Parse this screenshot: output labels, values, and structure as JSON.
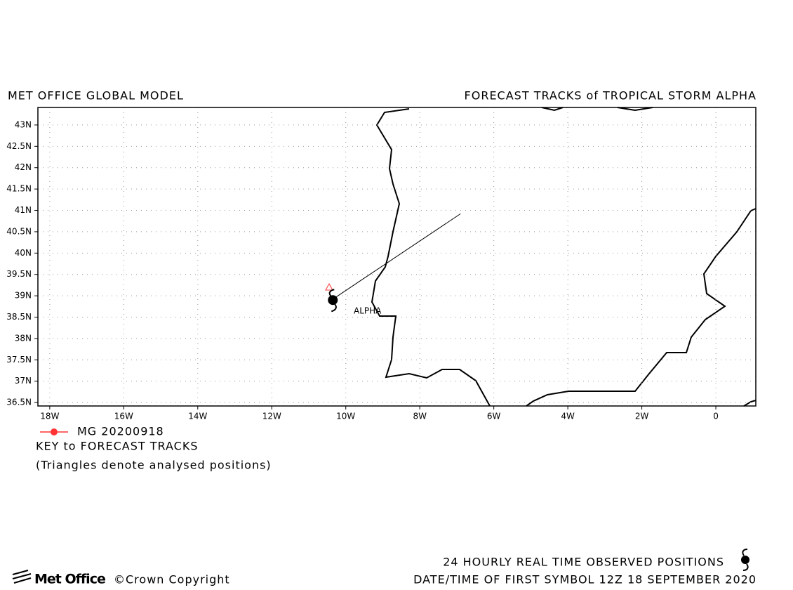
{
  "chart_data": {
    "type": "track-map",
    "title": "MET OFFICE GLOBAL MODEL",
    "subtitle": "FORECAST TRACKS of TROPICAL STORM ALPHA",
    "xlim": [
      -18.32,
      1.08
    ],
    "ylim": [
      36.42,
      43.41
    ],
    "xticks": [
      {
        "value": -18,
        "label": "18W"
      },
      {
        "value": -16,
        "label": "16W"
      },
      {
        "value": -14,
        "label": "14W"
      },
      {
        "value": -12,
        "label": "12W"
      },
      {
        "value": -10,
        "label": "10W"
      },
      {
        "value": -8,
        "label": "8W"
      },
      {
        "value": -6,
        "label": "6W"
      },
      {
        "value": -4,
        "label": "4W"
      },
      {
        "value": -2,
        "label": "2W"
      },
      0
    ],
    "yticks": [
      {
        "value": 36.5,
        "label": "36.5N"
      },
      {
        "value": 37,
        "label": "37N"
      },
      {
        "value": 37.5,
        "label": "37.5N"
      },
      {
        "value": 38,
        "label": "38N"
      },
      {
        "value": 38.5,
        "label": "38.5N"
      },
      {
        "value": 39,
        "label": "39N"
      },
      {
        "value": 39.5,
        "label": "39.5N"
      },
      {
        "value": 40,
        "label": "40N"
      },
      {
        "value": 40.5,
        "label": "40.5N"
      },
      {
        "value": 41,
        "label": "41N"
      },
      {
        "value": 41.5,
        "label": "41.5N"
      },
      {
        "value": 42,
        "label": "42N"
      },
      {
        "value": 42.5,
        "label": "42.5N"
      },
      {
        "value": 43,
        "label": "43N"
      }
    ],
    "grid": true,
    "series": [
      {
        "name": "MG 20200918",
        "color": "#ff3333",
        "x": [
          -10.3,
          -6.9
        ],
        "y": [
          38.95,
          40.92
        ]
      }
    ],
    "analysed": {
      "x": -10.45,
      "y": 39.2
    },
    "storm": {
      "label": "ALPHA",
      "x": -10.35,
      "y": 38.9
    },
    "key_title": "KEY to FORECAST TRACKS",
    "key_note": "(Triangles denote analysed positions)",
    "footer_line1": "24 HOURLY REAL TIME OBSERVED POSITIONS",
    "footer_line2": "DATE/TIME OF FIRST SYMBOL 12Z 18 SEPTEMBER 2020",
    "logo": "Met Office",
    "copyright": "©Crown Copyright"
  }
}
